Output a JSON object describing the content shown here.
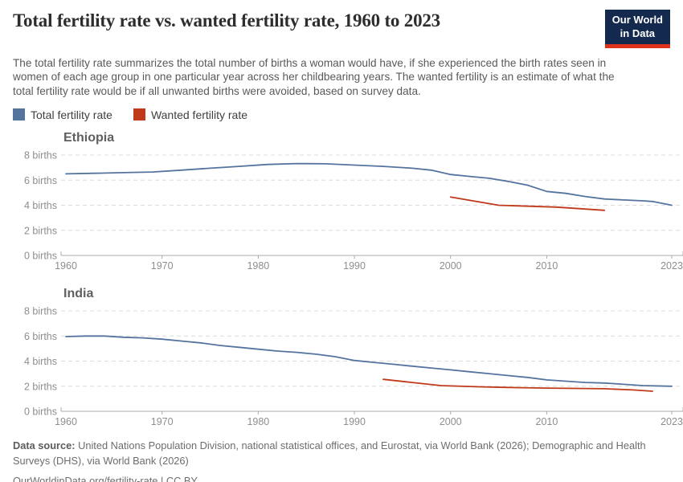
{
  "header": {
    "title": "Total fertility rate vs. wanted fertility rate, 1960 to 2023",
    "subtitle": "The total fertility rate summarizes the total number of births a woman would have, if she experienced the birth rates seen in women of each age group in one particular year across her childbearing years. The wanted fertility is an estimate of what the total fertility rate would be if all unwanted births were avoided, based on survey data.",
    "logo": {
      "line1": "Our World",
      "line2": "in Data"
    }
  },
  "legend": [
    {
      "label": "Total fertility rate",
      "color": "#54749E"
    },
    {
      "label": "Wanted fertility rate",
      "color": "#C0391B"
    }
  ],
  "colors": {
    "total_series": "#54749E",
    "wanted_series": "#C0391B",
    "grid": "#dcdcdc",
    "axis": "#ababab",
    "tick_text": "#8e8e8e",
    "logo_bg": "#14294e",
    "logo_bar": "#e0321a"
  },
  "chart_data": [
    {
      "type": "line",
      "title": "Ethiopia",
      "xlabel": "",
      "ylabel": "births",
      "xlim": [
        1960,
        2023
      ],
      "ylim": [
        0,
        8
      ],
      "x_ticks": [
        1960,
        1970,
        1980,
        1990,
        2000,
        2010,
        2023
      ],
      "y_ticks": [
        0,
        2,
        4,
        6,
        8
      ],
      "y_tick_suffix": " births",
      "grid": "dashed horizontal",
      "series": [
        {
          "name": "Total fertility rate",
          "color": "#54749E",
          "points": [
            [
              1960,
              6.5
            ],
            [
              1963,
              6.55
            ],
            [
              1966,
              6.6
            ],
            [
              1969,
              6.65
            ],
            [
              1972,
              6.8
            ],
            [
              1975,
              6.95
            ],
            [
              1978,
              7.1
            ],
            [
              1981,
              7.25
            ],
            [
              1984,
              7.32
            ],
            [
              1987,
              7.3
            ],
            [
              1990,
              7.2
            ],
            [
              1993,
              7.1
            ],
            [
              1996,
              6.95
            ],
            [
              1998,
              6.8
            ],
            [
              2000,
              6.45
            ],
            [
              2002,
              6.3
            ],
            [
              2004,
              6.15
            ],
            [
              2006,
              5.9
            ],
            [
              2008,
              5.6
            ],
            [
              2010,
              5.1
            ],
            [
              2012,
              4.95
            ],
            [
              2014,
              4.7
            ],
            [
              2016,
              4.5
            ],
            [
              2018,
              4.42
            ],
            [
              2020,
              4.35
            ],
            [
              2021,
              4.3
            ],
            [
              2023,
              4.0
            ]
          ]
        },
        {
          "name": "Wanted fertility rate",
          "color": "#C0391B",
          "points": [
            [
              2000,
              4.65
            ],
            [
              2005,
              4.0
            ],
            [
              2011,
              3.85
            ],
            [
              2016,
              3.6
            ]
          ]
        }
      ]
    },
    {
      "type": "line",
      "title": "India",
      "xlabel": "",
      "ylabel": "births",
      "xlim": [
        1960,
        2023
      ],
      "ylim": [
        0,
        8
      ],
      "x_ticks": [
        1960,
        1970,
        1980,
        1990,
        2000,
        2010,
        2023
      ],
      "y_ticks": [
        0,
        2,
        4,
        6,
        8
      ],
      "y_tick_suffix": " births",
      "grid": "dashed horizontal",
      "series": [
        {
          "name": "Total fertility rate",
          "color": "#54749E",
          "points": [
            [
              1960,
              5.95
            ],
            [
              1962,
              6.0
            ],
            [
              1964,
              6.0
            ],
            [
              1966,
              5.9
            ],
            [
              1968,
              5.85
            ],
            [
              1970,
              5.75
            ],
            [
              1972,
              5.6
            ],
            [
              1974,
              5.45
            ],
            [
              1976,
              5.25
            ],
            [
              1978,
              5.1
            ],
            [
              1980,
              4.95
            ],
            [
              1982,
              4.8
            ],
            [
              1984,
              4.7
            ],
            [
              1986,
              4.55
            ],
            [
              1988,
              4.35
            ],
            [
              1990,
              4.05
            ],
            [
              1992,
              3.9
            ],
            [
              1994,
              3.75
            ],
            [
              1996,
              3.6
            ],
            [
              1998,
              3.45
            ],
            [
              2000,
              3.3
            ],
            [
              2002,
              3.15
            ],
            [
              2004,
              3.0
            ],
            [
              2006,
              2.85
            ],
            [
              2008,
              2.7
            ],
            [
              2010,
              2.5
            ],
            [
              2012,
              2.4
            ],
            [
              2014,
              2.3
            ],
            [
              2016,
              2.25
            ],
            [
              2018,
              2.15
            ],
            [
              2020,
              2.05
            ],
            [
              2023,
              2.0
            ]
          ]
        },
        {
          "name": "Wanted fertility rate",
          "color": "#C0391B",
          "points": [
            [
              1993,
              2.55
            ],
            [
              1996,
              2.3
            ],
            [
              1999,
              2.05
            ],
            [
              2003,
              1.95
            ],
            [
              2006,
              1.9
            ],
            [
              2010,
              1.85
            ],
            [
              2016,
              1.8
            ],
            [
              2019,
              1.7
            ],
            [
              2021,
              1.6
            ]
          ]
        }
      ]
    }
  ],
  "footer": {
    "source_label": "Data source:",
    "source_text": " United Nations Population Division, national statistical offices, and Eurostat, via World Bank (2026); Demographic and Health Surveys (DHS), via World Bank (2026)",
    "link_text": "OurWorldinData.org/fertility-rate",
    "license_text": " | CC BY"
  }
}
